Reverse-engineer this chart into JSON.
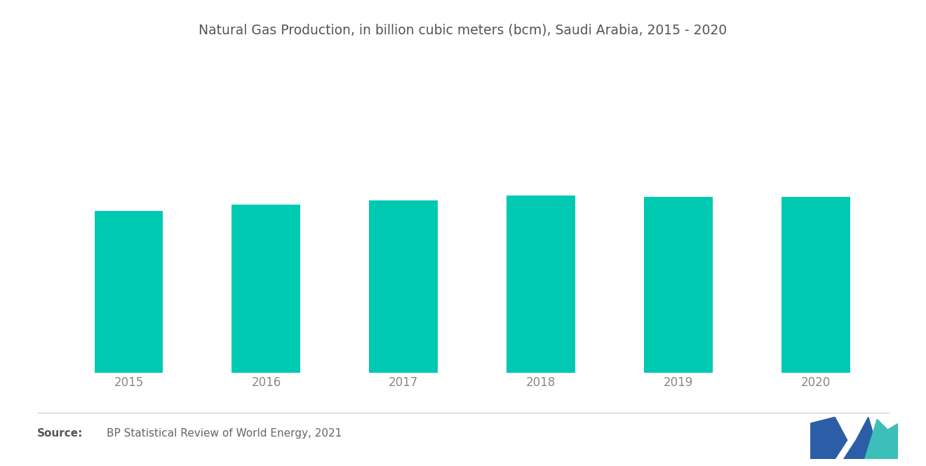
{
  "title": "Natural Gas Production, in billion cubic meters (bcm), Saudi Arabia, 2015 - 2020",
  "categories": [
    "2015",
    "2016",
    "2017",
    "2018",
    "2019",
    "2020"
  ],
  "values": [
    102,
    106,
    109,
    112,
    111,
    111
  ],
  "bar_color": "#00C9B1",
  "background_color": "#ffffff",
  "title_fontsize": 13.5,
  "tick_fontsize": 12,
  "source_bold": "Source:",
  "source_text": "BP Statistical Review of World Energy, 2021",
  "source_fontsize": 11,
  "ylim": [
    0,
    200
  ],
  "bar_width": 0.5
}
